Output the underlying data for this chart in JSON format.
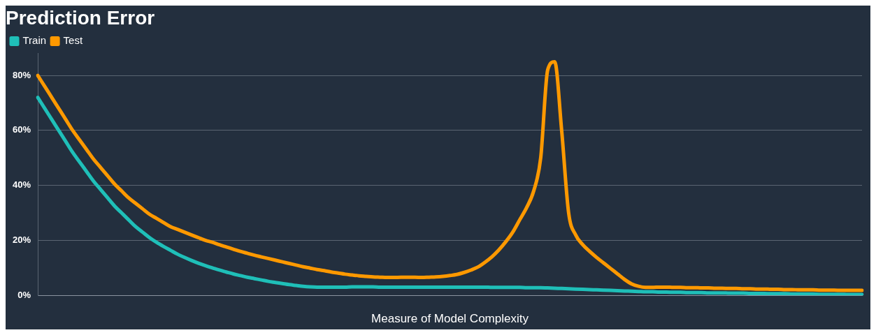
{
  "chart_data": {
    "type": "line",
    "title": "Prediction Error",
    "xlabel": "Measure of Model Complexity",
    "categories": [
      null,
      null,
      null,
      null,
      null,
      null,
      null,
      null,
      null,
      null,
      null,
      null,
      null,
      null,
      null,
      null,
      null,
      null,
      null,
      null,
      null,
      null,
      null,
      null,
      null,
      null,
      null,
      null,
      null,
      null,
      null,
      null,
      null,
      null,
      null,
      null,
      null,
      null,
      null,
      null,
      null,
      null,
      null,
      null,
      null,
      null,
      null,
      null,
      null,
      null,
      null,
      null,
      null,
      null,
      null,
      null,
      null,
      null,
      null,
      null,
      null,
      null,
      null,
      null,
      null,
      null,
      null,
      null,
      null,
      null,
      null,
      null,
      null,
      null,
      null,
      null,
      null,
      null,
      null,
      null,
      null,
      null,
      null,
      null,
      null,
      null,
      null,
      null,
      null,
      null,
      null,
      null,
      null,
      null,
      null,
      null,
      null,
      null,
      null,
      null,
      null,
      null,
      null,
      null,
      null,
      null,
      null,
      null,
      null,
      null,
      null,
      null,
      null,
      null,
      null,
      null,
      null,
      null,
      null
    ],
    "series": [
      {
        "name": "Train",
        "color": "#1fbfb8",
        "values": [
          72,
          68,
          64,
          60,
          56,
          52,
          48.5,
          45,
          41.5,
          38.5,
          35.5,
          32.5,
          30,
          27.5,
          25,
          23,
          21,
          19.3,
          17.8,
          16.4,
          15,
          13.8,
          12.7,
          11.7,
          10.8,
          10,
          9.2,
          8.5,
          7.8,
          7.2,
          6.6,
          6.1,
          5.6,
          5.1,
          4.7,
          4.3,
          3.9,
          3.6,
          3.3,
          3.1,
          3,
          3,
          3,
          3,
          3,
          3.1,
          3.1,
          3.1,
          3.1,
          3,
          3,
          3,
          3,
          3,
          3,
          3,
          3,
          3,
          3,
          3,
          3,
          3,
          3,
          3,
          3,
          2.9,
          2.9,
          2.9,
          2.9,
          2.9,
          2.8,
          2.8,
          2.8,
          2.7,
          2.6,
          2.5,
          2.4,
          2.3,
          2.2,
          2.1,
          2,
          1.9,
          1.8,
          1.7,
          1.6,
          1.5,
          1.4,
          1.3,
          1.3,
          1.2,
          1.2,
          1.1,
          1.1,
          1,
          1,
          1,
          0.9,
          0.9,
          0.9,
          0.8,
          0.8,
          0.8,
          0.7,
          0.7,
          0.7,
          0.6,
          0.6,
          0.6,
          0.5,
          0.5,
          0.5,
          0.5,
          0.4,
          0.4,
          0.4,
          0.4,
          0.3,
          0.3,
          0.3
        ]
      },
      {
        "name": "Test",
        "color": "#ff9900",
        "values": [
          80,
          76,
          72,
          68,
          64,
          60,
          56.5,
          53,
          49.5,
          46.5,
          43.5,
          40.5,
          38,
          35.5,
          33.5,
          31.5,
          29.5,
          28,
          26.5,
          25,
          24,
          23,
          22,
          21,
          20,
          19.3,
          18.4,
          17.6,
          16.8,
          16,
          15.3,
          14.6,
          14,
          13.4,
          12.8,
          12.2,
          11.6,
          11,
          10.4,
          9.9,
          9.4,
          9,
          8.5,
          8.1,
          7.7,
          7.4,
          7.1,
          6.9,
          6.7,
          6.6,
          6.5,
          6.5,
          6.6,
          6.6,
          6.6,
          6.5,
          6.6,
          6.7,
          6.9,
          7.2,
          7.6,
          8.3,
          9.2,
          10.3,
          12,
          14,
          16.5,
          19.5,
          23,
          27.5,
          32,
          38,
          50,
          82,
          85,
          60,
          30,
          22,
          18.5,
          16,
          13.8,
          11.8,
          9.8,
          7.8,
          5.8,
          4.2,
          3.3,
          2.9,
          2.9,
          3,
          3,
          2.9,
          2.9,
          2.8,
          2.8,
          2.7,
          2.7,
          2.6,
          2.6,
          2.5,
          2.5,
          2.4,
          2.4,
          2.3,
          2.3,
          2.2,
          2.2,
          2.1,
          2.1,
          2,
          2,
          2,
          1.9,
          1.9,
          1.9,
          1.8,
          1.8,
          1.8,
          1.8
        ]
      }
    ],
    "ylim": [
      0,
      88
    ],
    "yticks": [
      {
        "value": 0,
        "label": "0%"
      },
      {
        "value": 20,
        "label": "20%"
      },
      {
        "value": 40,
        "label": "40%"
      },
      {
        "value": 60,
        "label": "60%"
      },
      {
        "value": 80,
        "label": "80%"
      }
    ],
    "grid": "y",
    "legend": "top left",
    "marker": "none",
    "line_style": "solid"
  }
}
